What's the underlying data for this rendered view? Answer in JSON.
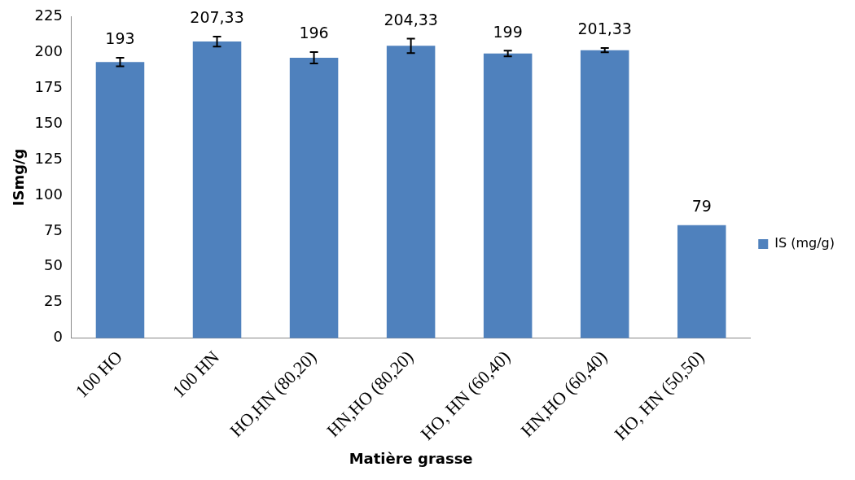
{
  "chart_data": {
    "type": "bar",
    "xlabel": "Matière grasse",
    "ylabel": "ISmg/g",
    "categories": [
      "100 HO",
      "100 HN",
      "HO,HN (80,20)",
      "HN,HO (80,20)",
      "HO, HN (60,40)",
      "HN,HO (60,40)",
      "HO, HN (50,50)"
    ],
    "series": [
      {
        "name": "IS (mg/g)",
        "color": "#4f81bd",
        "values": [
          193,
          207.33,
          196,
          204.33,
          199,
          201.33,
          79
        ],
        "errors": [
          3,
          3.5,
          4,
          5,
          2,
          1.5,
          null
        ],
        "value_labels": [
          "193",
          "207,33",
          "196",
          "204,33",
          "199",
          "201,33",
          "79"
        ]
      }
    ],
    "ylim": [
      0,
      225
    ],
    "yticks": [
      0,
      25,
      50,
      75,
      100,
      125,
      150,
      175,
      200,
      225
    ],
    "grid": false,
    "legend": "right"
  }
}
